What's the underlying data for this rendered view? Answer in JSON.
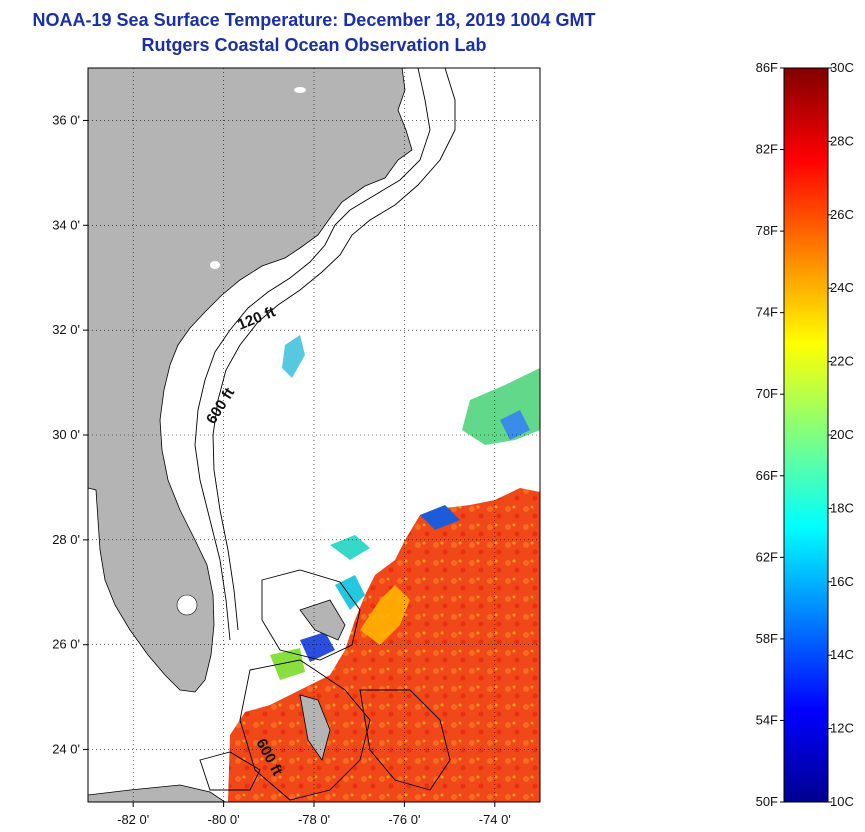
{
  "title": {
    "line1": "NOAA-19 Sea Surface Temperature:  December 18, 2019 1004 GMT",
    "line2": "Rutgers Coastal Ocean Observation Lab"
  },
  "map": {
    "lon_range": [
      -83,
      -73
    ],
    "lat_range": [
      23,
      37
    ],
    "lat_ticks": [
      {
        "value": 24,
        "label": "24 0'"
      },
      {
        "value": 26,
        "label": "26 0'"
      },
      {
        "value": 28,
        "label": "28 0'"
      },
      {
        "value": 30,
        "label": "30 0'"
      },
      {
        "value": 32,
        "label": "32 0'"
      },
      {
        "value": 34,
        "label": "34 0'"
      },
      {
        "value": 36,
        "label": "36 0'"
      }
    ],
    "lon_ticks": [
      {
        "value": -82,
        "label": "-82 0'"
      },
      {
        "value": -80,
        "label": "-80 0'"
      },
      {
        "value": -78,
        "label": "-78 0'"
      },
      {
        "value": -76,
        "label": "-76 0'"
      },
      {
        "value": -74,
        "label": "-74 0'"
      }
    ],
    "grid": "dotted",
    "isobath_labels": {
      "shelf_120": "120 ft",
      "shelf_600": "600 ft",
      "straits_600": "600 ft"
    },
    "colors": {
      "land": "#b4b4b4",
      "ocean_nodata": "#ffffff",
      "contour": "#000000"
    }
  },
  "colorbar": {
    "f_labels": [
      "86F",
      "82F",
      "78F",
      "74F",
      "70F",
      "66F",
      "62F",
      "58F",
      "54F",
      "50F"
    ],
    "c_labels": [
      "30C",
      "28C",
      "26C",
      "24C",
      "22C",
      "20C",
      "18C",
      "16C",
      "14C",
      "12C",
      "10C"
    ],
    "colormap": "jet",
    "range_c": [
      10,
      30
    ]
  }
}
